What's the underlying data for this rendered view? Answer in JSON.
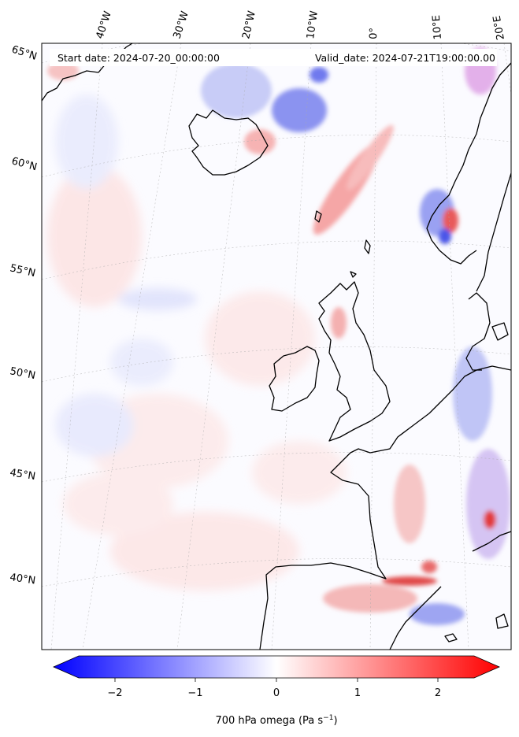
{
  "header": {
    "start_date": "Start date: 2024-07-20_00:00:00",
    "valid_date": "Valid_date: 2024-07-21T19:00:00.00"
  },
  "longitude_labels": [
    "40°W",
    "30°W",
    "20°W",
    "10°W",
    "0°",
    "10°E",
    "20°E"
  ],
  "latitude_labels": [
    "65°N",
    "60°N",
    "55°N",
    "50°N",
    "45°N",
    "40°N"
  ],
  "colorbar": {
    "ticks": [
      "−2",
      "−1",
      "0",
      "1",
      "2"
    ],
    "label": "700 hPa omega (Pa s",
    "label_exponent": "−1",
    "label_close": ")",
    "colormap": "bwr",
    "min_color": "#0000ff",
    "mid_color": "#ffffff",
    "max_color": "#ff0000"
  }
}
